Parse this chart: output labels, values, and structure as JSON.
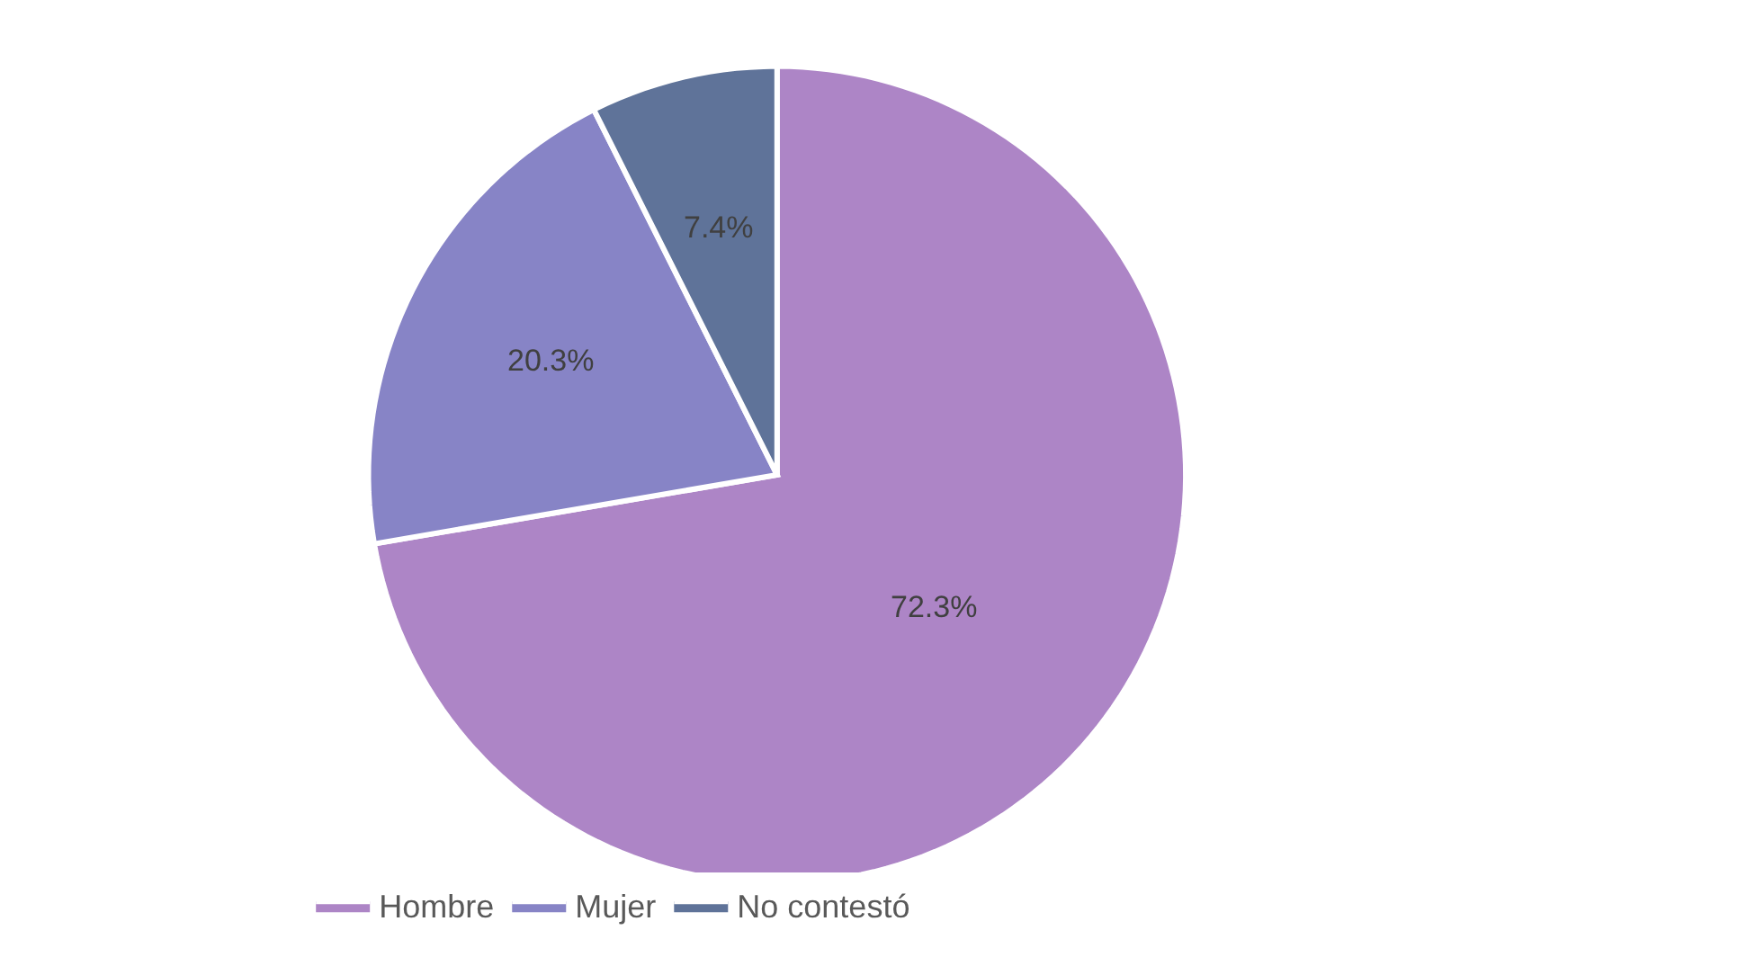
{
  "chart_data": {
    "type": "pie",
    "categories": [
      "Hombre",
      "Mujer",
      "No contestó"
    ],
    "values": [
      72.3,
      20.3,
      7.4
    ],
    "colors": [
      "#ad85c6",
      "#8784c6",
      "#5f7399"
    ],
    "value_labels": [
      "72.3%",
      "20.3%",
      "7.4%"
    ],
    "legend": "bottom"
  }
}
